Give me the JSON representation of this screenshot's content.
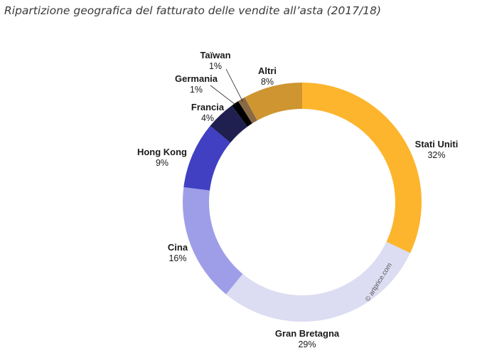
{
  "chart_data": {
    "type": "donut",
    "title": "Ripartizione geografica del fatturato delle vendite all’asta (2017/18)",
    "unit": "%",
    "slices": [
      {
        "name": "Stati Uniti",
        "value": 32,
        "label": "32%",
        "color": "#FDB52D"
      },
      {
        "name": "Gran Bretagna",
        "value": 29,
        "label": "29%",
        "color": "#DCDCF2"
      },
      {
        "name": "Cina",
        "value": 16,
        "label": "16%",
        "color": "#9E9EE8"
      },
      {
        "name": "Hong Kong",
        "value": 9,
        "label": "9%",
        "color": "#4140C2"
      },
      {
        "name": "Francia",
        "value": 4,
        "label": "4%",
        "color": "#202050"
      },
      {
        "name": "Germania",
        "value": 1,
        "label": "1%",
        "color": "#000000"
      },
      {
        "name": "Taïwan",
        "value": 1,
        "label": "1%",
        "color": "#8A6A45"
      },
      {
        "name": "Altri",
        "value": 8,
        "label": "8%",
        "color": "#CE9530"
      }
    ],
    "watermark": "© artprice.com"
  }
}
